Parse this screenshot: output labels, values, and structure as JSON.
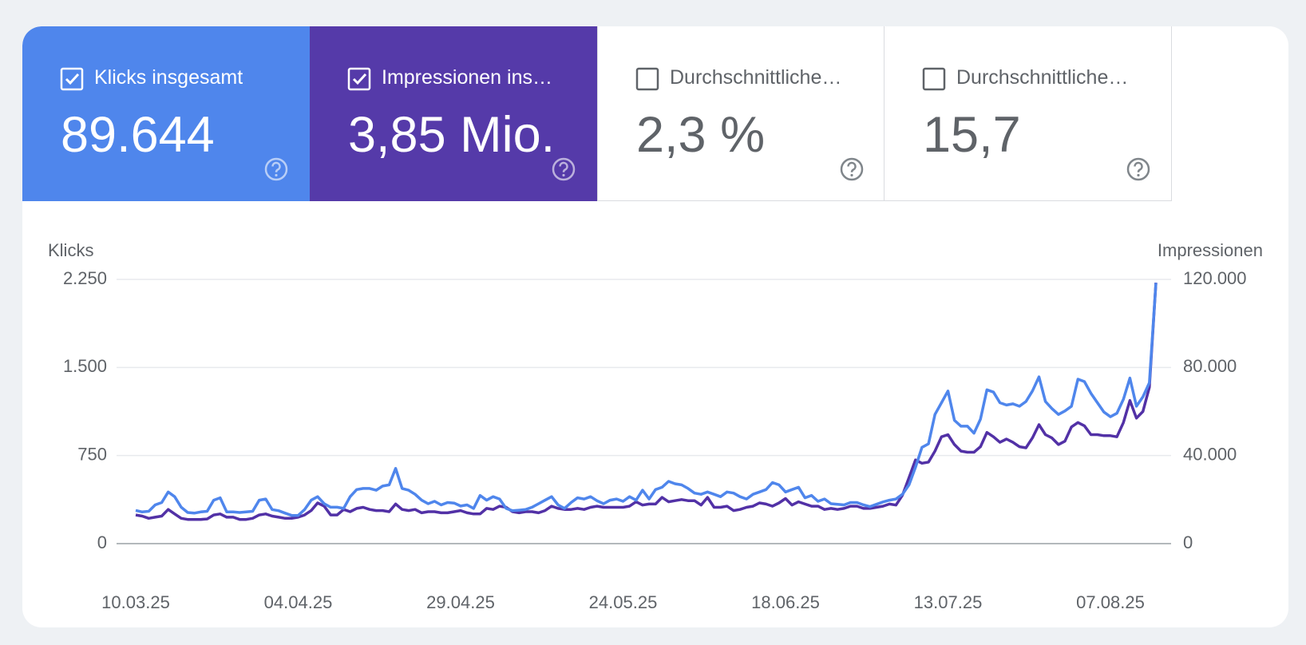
{
  "metrics": [
    {
      "label": "Klicks insgesamt",
      "value": "89.644",
      "checked": true,
      "color": "#4f86ec"
    },
    {
      "label": "Impressionen ins…",
      "value": "3,85 Mio.",
      "checked": true,
      "color": "#553aa9"
    },
    {
      "label": "Durchschnittliche…",
      "value": "2,3 %",
      "checked": false
    },
    {
      "label": "Durchschnittliche…",
      "value": "15,7",
      "checked": false
    }
  ],
  "chart_data": {
    "type": "line",
    "categories": [
      "10.03.25",
      null,
      null,
      null,
      null,
      null,
      null,
      null,
      null,
      null,
      null,
      null,
      null,
      null,
      null,
      null,
      null,
      null,
      null,
      null,
      null,
      null,
      null,
      null,
      null,
      "04.04.25",
      null,
      null,
      null,
      null,
      null,
      null,
      null,
      null,
      null,
      null,
      null,
      null,
      null,
      null,
      null,
      null,
      null,
      null,
      null,
      null,
      null,
      null,
      null,
      null,
      "29.04.25",
      null,
      null,
      null,
      null,
      null,
      null,
      null,
      null,
      null,
      null,
      null,
      null,
      null,
      null,
      null,
      null,
      null,
      null,
      null,
      null,
      null,
      null,
      null,
      null,
      "24.05.25",
      null,
      null,
      null,
      null,
      null,
      null,
      null,
      null,
      null,
      null,
      null,
      null,
      null,
      null,
      null,
      null,
      null,
      null,
      null,
      null,
      null,
      null,
      null,
      null,
      "18.06.25",
      null,
      null,
      null,
      null,
      null,
      null,
      null,
      null,
      null,
      null,
      null,
      null,
      null,
      null,
      null,
      null,
      null,
      null,
      null,
      null,
      null,
      null,
      null,
      null,
      "13.07.25",
      null,
      null,
      null,
      null,
      null,
      null,
      null,
      null,
      null,
      null,
      null,
      null,
      null,
      null,
      null,
      null,
      null,
      null,
      null,
      null,
      null,
      null,
      null,
      null,
      "07.08.25",
      null,
      null,
      null,
      null,
      null,
      null,
      null
    ],
    "series": [
      {
        "name": "Klicks",
        "color": "#4f86ec",
        "values": [
          283,
          270,
          275,
          330,
          350,
          440,
          400,
          310,
          265,
          260,
          270,
          275,
          370,
          390,
          270,
          270,
          265,
          270,
          275,
          370,
          380,
          290,
          280,
          260,
          240,
          240,
          290,
          370,
          400,
          340,
          310,
          310,
          300,
          400,
          460,
          470,
          470,
          455,
          490,
          500,
          640,
          470,
          455,
          420,
          370,
          340,
          360,
          330,
          350,
          345,
          320,
          330,
          300,
          410,
          370,
          400,
          380,
          300,
          280,
          285,
          290,
          310,
          340,
          370,
          400,
          330,
          300,
          350,
          390,
          380,
          400,
          365,
          340,
          370,
          380,
          360,
          400,
          370,
          455,
          380,
          460,
          480,
          530,
          510,
          500,
          470,
          430,
          420,
          440,
          420,
          400,
          440,
          430,
          400,
          380,
          420,
          440,
          460,
          520,
          500,
          440,
          460,
          480,
          390,
          410,
          360,
          380,
          340,
          335,
          330,
          350,
          350,
          330,
          315,
          335,
          355,
          370,
          380,
          420,
          500,
          650,
          820,
          850,
          1100,
          1200,
          1300,
          1050,
          1000,
          1000,
          940,
          1060,
          1310,
          1290,
          1200,
          1180,
          1190,
          1170,
          1210,
          1300,
          1420,
          1210,
          1150,
          1100,
          1130,
          1170,
          1400,
          1380,
          1280,
          1200,
          1120,
          1080,
          1110,
          1230,
          1410,
          1170,
          1250,
          1370,
          2220
        ]
      },
      {
        "name": "Impressionen",
        "color": "#5231a6",
        "axis": "y2",
        "values": [
          13000,
          12500,
          11500,
          12000,
          12500,
          15500,
          13500,
          11500,
          11000,
          11000,
          11000,
          11200,
          13000,
          13500,
          12000,
          12000,
          11000,
          11000,
          11500,
          13000,
          13500,
          12500,
          12000,
          11500,
          11500,
          12000,
          13000,
          15000,
          18500,
          17000,
          13000,
          13000,
          15500,
          14500,
          16000,
          16500,
          15500,
          15000,
          15000,
          14500,
          18000,
          15500,
          15000,
          15500,
          14000,
          14500,
          14500,
          14000,
          14000,
          14500,
          15000,
          14000,
          13500,
          13500,
          16000,
          15500,
          17000,
          16500,
          14500,
          14000,
          14500,
          14500,
          14000,
          15000,
          17000,
          16000,
          15500,
          15500,
          16000,
          15500,
          16500,
          17000,
          16500,
          16500,
          16500,
          16500,
          17000,
          19000,
          17500,
          18000,
          18000,
          21000,
          19000,
          19500,
          20000,
          19500,
          19500,
          17500,
          21000,
          16500,
          16500,
          17000,
          15000,
          15500,
          16500,
          17000,
          18500,
          18000,
          17000,
          18500,
          20500,
          17500,
          19000,
          18000,
          17000,
          17000,
          15500,
          16000,
          15500,
          16000,
          17000,
          17000,
          16000,
          16000,
          16500,
          17000,
          18000,
          17500,
          22000,
          30000,
          38000,
          36500,
          37000,
          42000,
          48500,
          49500,
          45000,
          42000,
          41500,
          41500,
          44000,
          50500,
          48500,
          46000,
          47500,
          46000,
          44000,
          43500,
          48000,
          54000,
          49500,
          48000,
          45000,
          46500,
          53000,
          55000,
          53500,
          49500,
          49500,
          49000,
          49000,
          48500,
          55000,
          65000,
          57000,
          60000,
          71000,
          118500
        ]
      }
    ],
    "ylim": [
      0,
      2250
    ],
    "yticks": [
      0,
      750,
      {
        "value": 1500,
        "label": "1.500"
      },
      {
        "value": 2250,
        "label": "2.250"
      }
    ],
    "y2lim": [
      0,
      120000
    ],
    "y2ticks": [
      0,
      {
        "value": 40000,
        "label": "40.000"
      },
      {
        "value": 80000,
        "label": "80.000"
      },
      {
        "value": 120000,
        "label": "120.000"
      }
    ],
    "grid": true
  }
}
